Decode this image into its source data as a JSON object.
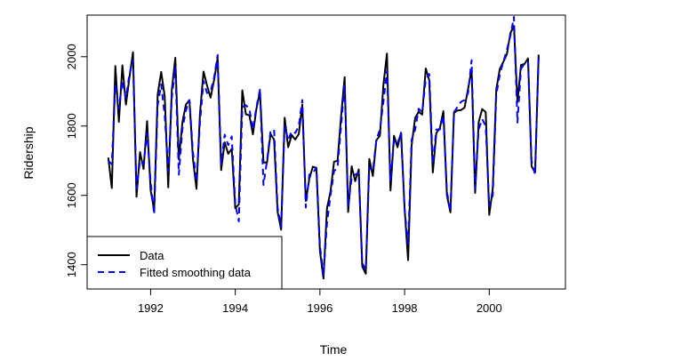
{
  "chart_data": {
    "type": "line",
    "title": "",
    "xlabel": "Time",
    "ylabel": "Ridership",
    "xlim": [
      1990.5,
      2001.8
    ],
    "ylim": [
      1330,
      2120
    ],
    "x_ticks": [
      1992,
      1994,
      1996,
      1998,
      2000
    ],
    "x_tick_labels": [
      "1992",
      "1994",
      "1996",
      "1998",
      "2000"
    ],
    "y_ticks": [
      1400,
      1600,
      1800,
      2000
    ],
    "y_tick_labels": [
      "1400",
      "1600",
      "1800",
      "2000"
    ],
    "grid": false,
    "legend_position": "bottom-left",
    "x_start": 1991.0,
    "x_step": 0.08333333,
    "series": [
      {
        "name": "Data",
        "color": "#000000",
        "dash": "solid",
        "values": [
          1709,
          1621,
          1973,
          1812,
          1975,
          1862,
          1940,
          2013,
          1596,
          1725,
          1676,
          1814,
          1615,
          1557,
          1891,
          1956,
          1885,
          1623,
          1903,
          1997,
          1704,
          1810,
          1862,
          1875,
          1705,
          1619,
          1837,
          1957,
          1917,
          1882,
          1933,
          1996,
          1673,
          1753,
          1720,
          1734,
          1563,
          1574,
          1903,
          1834,
          1831,
          1776,
          1850,
          1899,
          1695,
          1695,
          1777,
          1761,
          1553,
          1501,
          1824,
          1739,
          1774,
          1761,
          1777,
          1862,
          1584,
          1648,
          1683,
          1679,
          1440,
          1360,
          1563,
          1611,
          1697,
          1700,
          1829,
          1941,
          1552,
          1684,
          1641,
          1675,
          1395,
          1374,
          1705,
          1656,
          1759,
          1772,
          1919,
          2009,
          1614,
          1772,
          1739,
          1781,
          1563,
          1413,
          1745,
          1824,
          1841,
          1833,
          1966,
          1932,
          1666,
          1780,
          1794,
          1843,
          1600,
          1551,
          1838,
          1845,
          1846,
          1853,
          1907,
          1965,
          1607,
          1811,
          1849,
          1840,
          1544,
          1620,
          1906,
          1965,
          1985,
          2007,
          2068,
          2089,
          1869,
          1976,
          1979,
          1995,
          1684,
          1666,
          2006
        ]
      },
      {
        "name": "Fitted smoothing data",
        "color": "#0000ff",
        "dash": "dashed",
        "values": [
          1700,
          1690,
          1920,
          1850,
          1930,
          1880,
          1950,
          1990,
          1620,
          1700,
          1690,
          1780,
          1640,
          1545,
          1860,
          1920,
          1830,
          1670,
          1880,
          1970,
          1660,
          1790,
          1845,
          1875,
          1725,
          1640,
          1810,
          1930,
          1895,
          1900,
          1940,
          2005,
          1690,
          1775,
          1745,
          1770,
          1575,
          1525,
          1855,
          1860,
          1850,
          1790,
          1855,
          1905,
          1630,
          1700,
          1785,
          1790,
          1565,
          1510,
          1800,
          1760,
          1785,
          1780,
          1800,
          1875,
          1565,
          1660,
          1665,
          1680,
          1455,
          1370,
          1520,
          1600,
          1670,
          1680,
          1800,
          1920,
          1570,
          1650,
          1660,
          1665,
          1405,
          1385,
          1680,
          1670,
          1760,
          1790,
          1870,
          1960,
          1640,
          1760,
          1750,
          1780,
          1560,
          1460,
          1760,
          1790,
          1850,
          1840,
          1935,
          1950,
          1690,
          1790,
          1790,
          1830,
          1610,
          1555,
          1840,
          1855,
          1870,
          1875,
          1895,
          1990,
          1620,
          1790,
          1820,
          1800,
          1570,
          1600,
          1890,
          1950,
          1985,
          2020,
          2060,
          2115,
          1810,
          1965,
          1980,
          1985,
          1700,
          1660,
          2000
        ]
      }
    ]
  }
}
